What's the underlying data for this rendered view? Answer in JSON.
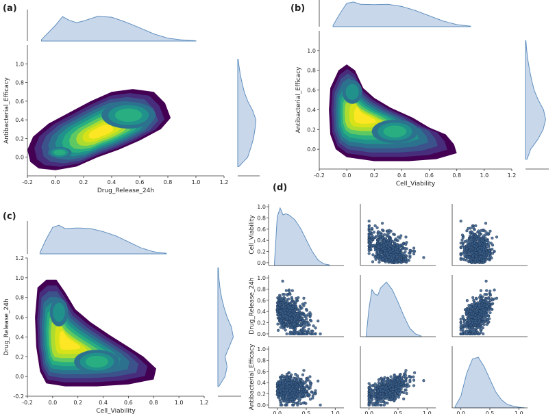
{
  "figure": {
    "panel_labels": [
      "(a)",
      "(b)",
      "(c)",
      "(d)"
    ],
    "colors": {
      "kde_levels": [
        "#440154",
        "#472d7b",
        "#3b528b",
        "#2c728e",
        "#21918c",
        "#28ae80",
        "#5ec962",
        "#addc30",
        "#d8e219",
        "#fde725"
      ],
      "marginal_fill": "#c9d7ea",
      "marginal_line": "#5f8fbf",
      "scatter_fill": "#3a5f8a",
      "scatter_edge": "#1b2f4d"
    },
    "icons": {
      "legend": "none"
    }
  },
  "chart_data": [
    {
      "type": "heatmap",
      "name": "joint-kde",
      "panel": "(a)",
      "xlabel": "Drug_Release_24h",
      "ylabel": "Antibacterial_Efficacy",
      "xlim": [
        -0.2,
        1.2
      ],
      "ylim": [
        -0.2,
        1.2
      ],
      "x_ticks": [
        "-0.2",
        "0.0",
        "0.2",
        "0.4",
        "0.6",
        "0.8",
        "1.0",
        "1.2"
      ],
      "y_ticks": [
        "0.0",
        "0.2",
        "0.4",
        "0.6",
        "0.8",
        "1.0"
      ],
      "x_tick_values": [
        -0.2,
        0.0,
        0.2,
        0.4,
        0.6,
        0.8,
        1.0,
        1.2
      ],
      "y_tick_values": [
        0.0,
        0.2,
        0.4,
        0.6,
        0.8,
        1.0
      ],
      "density_peaks": [
        {
          "x": 0.03,
          "y": 0.05,
          "weight": 0.55,
          "sx": 0.07,
          "sy": 0.05
        },
        {
          "x": 0.32,
          "y": 0.27,
          "weight": 1.0,
          "sx": 0.13,
          "sy": 0.08
        },
        {
          "x": 0.52,
          "y": 0.45,
          "weight": 0.55,
          "sx": 0.16,
          "sy": 0.12
        }
      ],
      "hull": [
        [
          -0.18,
          -0.05
        ],
        [
          -0.12,
          -0.12
        ],
        [
          0.0,
          -0.14
        ],
        [
          0.15,
          -0.1
        ],
        [
          0.3,
          0.0
        ],
        [
          0.45,
          0.08
        ],
        [
          0.6,
          0.18
        ],
        [
          0.75,
          0.3
        ],
        [
          0.82,
          0.42
        ],
        [
          0.78,
          0.58
        ],
        [
          0.7,
          0.7
        ],
        [
          0.55,
          0.73
        ],
        [
          0.4,
          0.7
        ],
        [
          0.25,
          0.6
        ],
        [
          0.1,
          0.48
        ],
        [
          -0.05,
          0.36
        ],
        [
          -0.16,
          0.22
        ],
        [
          -0.2,
          0.08
        ]
      ],
      "top_marginal": {
        "x": [
          -0.1,
          0.0,
          0.05,
          0.1,
          0.15,
          0.2,
          0.3,
          0.4,
          0.5,
          0.6,
          0.7,
          0.8,
          0.9,
          1.0
        ],
        "density": [
          0.05,
          0.55,
          0.85,
          0.72,
          0.64,
          0.7,
          0.86,
          0.83,
          0.66,
          0.46,
          0.25,
          0.1,
          0.04,
          0.01
        ]
      },
      "right_marginal": {
        "y": [
          -0.1,
          0.0,
          0.1,
          0.2,
          0.3,
          0.4,
          0.5,
          0.6,
          0.7,
          0.8,
          0.9,
          1.0,
          1.05
        ],
        "density": [
          0.06,
          0.52,
          0.68,
          0.82,
          0.9,
          0.95,
          0.78,
          0.52,
          0.34,
          0.22,
          0.12,
          0.05,
          0.02
        ]
      }
    },
    {
      "type": "heatmap",
      "name": "joint-kde",
      "panel": "(b)",
      "xlabel": "Cell_Viability",
      "ylabel": "Antibacterial_Efficacy",
      "xlim": [
        -0.2,
        1.2
      ],
      "ylim": [
        -0.2,
        1.2
      ],
      "x_ticks": [
        "-0.2",
        "0.0",
        "0.2",
        "0.4",
        "0.6",
        "0.8",
        "1.0",
        "1.2"
      ],
      "y_ticks": [
        "0.0",
        "0.2",
        "0.4",
        "0.6",
        "0.8",
        "1.0"
      ],
      "x_tick_values": [
        -0.2,
        0.0,
        0.2,
        0.4,
        0.6,
        0.8,
        1.0,
        1.2
      ],
      "y_tick_values": [
        0.0,
        0.2,
        0.4,
        0.6,
        0.8,
        1.0
      ],
      "density_peaks": [
        {
          "x": 0.12,
          "y": 0.33,
          "weight": 1.0,
          "sx": 0.1,
          "sy": 0.12
        },
        {
          "x": 0.35,
          "y": 0.18,
          "weight": 0.5,
          "sx": 0.14,
          "sy": 0.1
        },
        {
          "x": 0.04,
          "y": 0.58,
          "weight": 0.35,
          "sx": 0.06,
          "sy": 0.1
        }
      ],
      "hull": [
        [
          -0.12,
          0.62
        ],
        [
          -0.13,
          0.4
        ],
        [
          -0.12,
          0.15
        ],
        [
          -0.08,
          0.0
        ],
        [
          0.0,
          -0.08
        ],
        [
          0.2,
          -0.12
        ],
        [
          0.45,
          -0.12
        ],
        [
          0.65,
          -0.1
        ],
        [
          0.8,
          -0.04
        ],
        [
          0.78,
          0.05
        ],
        [
          0.72,
          0.15
        ],
        [
          0.6,
          0.22
        ],
        [
          0.48,
          0.32
        ],
        [
          0.32,
          0.42
        ],
        [
          0.2,
          0.52
        ],
        [
          0.12,
          0.62
        ],
        [
          0.06,
          0.8
        ],
        [
          0.0,
          0.86
        ],
        [
          -0.06,
          0.8
        ]
      ],
      "top_marginal": {
        "x": [
          -0.1,
          -0.05,
          0.0,
          0.05,
          0.1,
          0.2,
          0.3,
          0.4,
          0.5,
          0.6,
          0.7,
          0.8,
          0.9
        ],
        "density": [
          0.05,
          0.5,
          0.9,
          0.95,
          0.86,
          0.85,
          0.86,
          0.78,
          0.62,
          0.42,
          0.22,
          0.08,
          0.02
        ]
      },
      "right_marginal": {
        "y": [
          -0.1,
          0.0,
          0.1,
          0.2,
          0.3,
          0.4,
          0.5,
          0.6,
          0.7,
          0.8,
          0.9,
          1.0,
          1.1
        ],
        "density": [
          0.08,
          0.25,
          0.6,
          0.86,
          0.98,
          0.88,
          0.62,
          0.42,
          0.3,
          0.2,
          0.12,
          0.06,
          0.02
        ]
      }
    },
    {
      "type": "heatmap",
      "name": "joint-kde",
      "panel": "(c)",
      "xlabel": "Cell_Viability",
      "ylabel": "Drug_Release_24h",
      "xlim": [
        -0.2,
        1.2
      ],
      "ylim": [
        -0.2,
        1.2
      ],
      "x_ticks": [
        "-0.2",
        "0.0",
        "0.2",
        "0.4",
        "0.6",
        "0.8",
        "1.0",
        "1.2"
      ],
      "y_ticks": [
        "-0.2",
        "0.0",
        "0.2",
        "0.4",
        "0.6",
        "0.8",
        "1.0",
        "1.2"
      ],
      "x_tick_values": [
        -0.2,
        0.0,
        0.2,
        0.4,
        0.6,
        0.8,
        1.0,
        1.2
      ],
      "y_tick_values": [
        -0.2,
        0.0,
        0.2,
        0.4,
        0.6,
        0.8,
        1.0,
        1.2
      ],
      "density_peaks": [
        {
          "x": 0.12,
          "y": 0.35,
          "weight": 1.0,
          "sx": 0.1,
          "sy": 0.1
        },
        {
          "x": 0.35,
          "y": 0.15,
          "weight": 0.5,
          "sx": 0.15,
          "sy": 0.1
        },
        {
          "x": 0.05,
          "y": 0.65,
          "weight": 0.3,
          "sx": 0.06,
          "sy": 0.12
        }
      ],
      "hull": [
        [
          -0.12,
          0.9
        ],
        [
          -0.14,
          0.6
        ],
        [
          -0.13,
          0.3
        ],
        [
          -0.1,
          0.05
        ],
        [
          -0.05,
          -0.07
        ],
        [
          0.1,
          -0.1
        ],
        [
          0.35,
          -0.1
        ],
        [
          0.6,
          -0.08
        ],
        [
          0.8,
          -0.03
        ],
        [
          0.82,
          0.08
        ],
        [
          0.72,
          0.2
        ],
        [
          0.6,
          0.3
        ],
        [
          0.45,
          0.42
        ],
        [
          0.3,
          0.55
        ],
        [
          0.18,
          0.68
        ],
        [
          0.1,
          0.85
        ],
        [
          0.03,
          0.98
        ],
        [
          -0.05,
          0.98
        ]
      ],
      "top_marginal": {
        "x": [
          -0.1,
          -0.05,
          0.0,
          0.05,
          0.1,
          0.2,
          0.3,
          0.4,
          0.5,
          0.6,
          0.7,
          0.8,
          0.9
        ],
        "density": [
          0.05,
          0.5,
          0.88,
          0.95,
          0.84,
          0.86,
          0.84,
          0.74,
          0.6,
          0.4,
          0.2,
          0.07,
          0.02
        ]
      },
      "right_marginal": {
        "y": [
          -0.1,
          0.0,
          0.1,
          0.2,
          0.3,
          0.4,
          0.5,
          0.6,
          0.7,
          0.8,
          0.9,
          1.0,
          1.1
        ],
        "density": [
          0.05,
          0.35,
          0.45,
          0.35,
          0.55,
          0.75,
          0.66,
          0.45,
          0.3,
          0.18,
          0.1,
          0.05,
          0.02
        ]
      }
    },
    {
      "type": "scatter",
      "name": "pairplot",
      "panel": "(d)",
      "variables": [
        "Cell_Viability",
        "Drug_Release_24h",
        "Antibacterial_Efficacy"
      ],
      "x_ticks": [
        "0.0",
        "0.5",
        "1.0"
      ],
      "y_ticks": [
        "0.0",
        "0.2",
        "0.4",
        "0.6",
        "0.8",
        "1.0"
      ],
      "x_tick_values": [
        0.0,
        0.5,
        1.0
      ],
      "y_tick_values": [
        0.0,
        0.2,
        0.4,
        0.6,
        0.8,
        1.0
      ],
      "xlim": [
        -0.15,
        1.15
      ],
      "ylim": [
        -0.05,
        1.05
      ],
      "diag_kde": [
        {
          "x": [
            -0.05,
            0.0,
            0.05,
            0.1,
            0.15,
            0.2,
            0.3,
            0.4,
            0.5,
            0.6,
            0.7,
            0.8,
            0.9
          ],
          "density": [
            0.02,
            0.85,
            1.0,
            0.88,
            0.9,
            0.88,
            0.8,
            0.65,
            0.45,
            0.25,
            0.1,
            0.03,
            0.01
          ]
        },
        {
          "x": [
            -0.05,
            0.0,
            0.05,
            0.1,
            0.15,
            0.2,
            0.3,
            0.4,
            0.5,
            0.6,
            0.7,
            0.8,
            0.9
          ],
          "density": [
            0.02,
            0.5,
            0.82,
            0.74,
            0.72,
            0.85,
            0.95,
            0.82,
            0.6,
            0.36,
            0.15,
            0.05,
            0.01
          ]
        },
        {
          "x": [
            -0.1,
            0.0,
            0.1,
            0.2,
            0.3,
            0.4,
            0.5,
            0.6,
            0.7,
            0.8,
            0.9,
            1.0,
            1.1
          ],
          "density": [
            0.02,
            0.2,
            0.6,
            0.85,
            0.88,
            0.72,
            0.5,
            0.28,
            0.14,
            0.06,
            0.03,
            0.01,
            0.0
          ]
        }
      ],
      "scatter_model": {
        "n_points": 520,
        "relations": [
          {
            "row": 0,
            "col": 1,
            "corr": -0.45,
            "desc": "Cell_Viability vs Drug_Release_24h"
          },
          {
            "row": 0,
            "col": 2,
            "corr": -0.4,
            "desc": "Cell_Viability vs Antibacterial_Efficacy"
          },
          {
            "row": 1,
            "col": 0,
            "corr": -0.45,
            "desc": "Drug_Release_24h vs Cell_Viability"
          },
          {
            "row": 1,
            "col": 2,
            "corr": 0.6,
            "desc": "Drug_Release_24h vs Antibacterial_Efficacy"
          },
          {
            "row": 2,
            "col": 0,
            "corr": -0.4,
            "desc": "Antibacterial_Efficacy vs Cell_Viability"
          },
          {
            "row": 2,
            "col": 1,
            "corr": 0.6,
            "desc": "Antibacterial_Efficacy vs Drug_Release_24h"
          }
        ]
      }
    }
  ]
}
